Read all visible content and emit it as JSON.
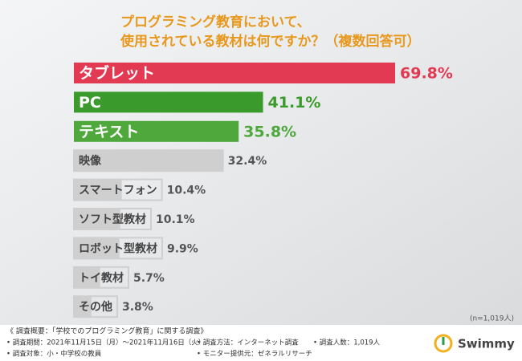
{
  "chart_data": {
    "type": "bar",
    "orientation": "horizontal",
    "title": "プログラミング教育において、",
    "subtitle": "使用されている教材は何ですか？（複数回答可）",
    "categories": [
      "タブレット",
      "PC",
      "テキスト",
      "映像",
      "スマートフォン",
      "ソフト型教材",
      "ロボット型教材",
      "トイ教材",
      "その他"
    ],
    "values": [
      69.8,
      41.1,
      35.8,
      32.4,
      10.4,
      10.1,
      9.9,
      5.7,
      3.8
    ],
    "value_labels": [
      "69.8%",
      "41.1%",
      "35.8%",
      "32.4%",
      "10.4%",
      "10.1%",
      "9.9%",
      "5.7%",
      "3.8%"
    ],
    "colors": [
      "#e23a52",
      "#3b9a2c",
      "#4ea83c",
      "#cfcfcf",
      "#cfcfcf",
      "#cfcfcf",
      "#cfcfcf",
      "#cfcfcf",
      "#cfcfcf"
    ],
    "note": "(n=1,019人)"
  },
  "footer": {
    "heading": "《 調査概要：「学校でのプログラミング教育」に関する調査》",
    "items": [
      "• 調査期間：2021年11月15日（月）～2021年11月16日（火）",
      "• 調査方法：インターネット調査",
      "• 調査人数：1,019人",
      "• 調査対象：小・中学校の教員",
      "• モニター提供元：ゼネラルリサーチ"
    ],
    "logo": "Swimmy"
  }
}
